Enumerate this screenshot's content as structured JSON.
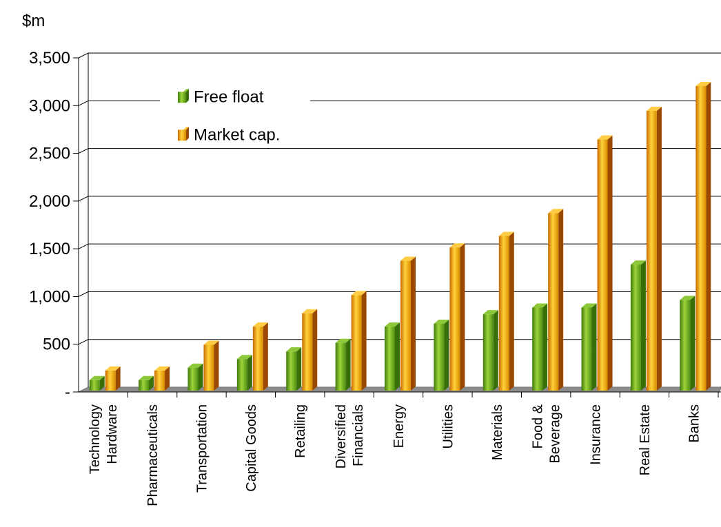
{
  "chart_data": {
    "type": "bar",
    "unit_label": "$m",
    "categories": [
      [
        "Technology",
        "Hardware"
      ],
      [
        "Pharmaceuticals"
      ],
      [
        "Transportation"
      ],
      [
        "Capital Goods"
      ],
      [
        "Retailing"
      ],
      [
        "Diversified",
        "Financials"
      ],
      [
        "Energy"
      ],
      [
        "Utilities"
      ],
      [
        "Materials"
      ],
      [
        "Food &",
        "Beverage"
      ],
      [
        "Insurance"
      ],
      [
        "Real Estate"
      ],
      [
        "Banks"
      ]
    ],
    "series": [
      {
        "name": "Free float",
        "color": "#6aaa1e",
        "values": [
          110,
          110,
          240,
          330,
          410,
          500,
          670,
          700,
          800,
          870,
          870,
          1320,
          950
        ]
      },
      {
        "name": "Market cap.",
        "color": "#f0a000",
        "values": [
          210,
          210,
          480,
          670,
          810,
          1000,
          1360,
          1500,
          1620,
          1860,
          2630,
          2930,
          3190
        ]
      }
    ],
    "ylim": [
      0,
      3500
    ],
    "yticks": [
      0,
      500,
      1000,
      1500,
      2000,
      2500,
      3000,
      3500
    ],
    "ytick_labels": [
      "-",
      "500",
      "1,000",
      "1,500",
      "2,000",
      "2,500",
      "3,000",
      "3,500"
    ],
    "grid": true,
    "legend_position": "top-left"
  }
}
